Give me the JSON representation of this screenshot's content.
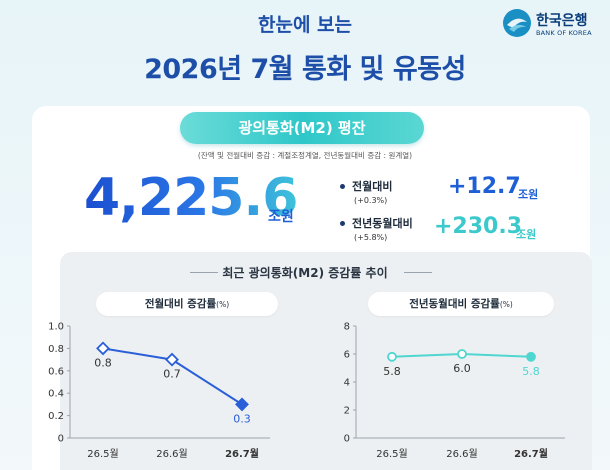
{
  "logo": {
    "name": "한국은행",
    "sub": "BANK OF KOREA"
  },
  "header": {
    "subtitle": "한눈에 보는",
    "title": "2026년 7월 통화 및 유동성"
  },
  "main": {
    "pill": "광의통화(M2) 평잔",
    "note": "(잔액 및 전월대비 증감 : 계절조정계열, 전년동월대비 증감 : 원계열)",
    "value": "4,225.6",
    "unit": "조원",
    "stats": [
      {
        "label": "전월대비",
        "pct": "(+0.3%)",
        "value": "+12.7",
        "unit": "조원",
        "color": "#1f5fd6"
      },
      {
        "label": "전년동월대비",
        "pct": "(+5.8%)",
        "value": "+230.3",
        "unit": "조원",
        "color": "#3cc9cc"
      }
    ]
  },
  "section": {
    "title": "최근 광의통화(M2) 증감률 추이"
  },
  "chart_data": [
    {
      "type": "line",
      "title": "전월대비 증감률",
      "title_unit": "(%)",
      "categories": [
        "26.5월",
        "26.6월",
        "26.7월"
      ],
      "values": [
        0.8,
        0.7,
        0.3
      ],
      "labels": [
        "0.8",
        "0.7",
        "0.3"
      ],
      "ylim": [
        0,
        1.0
      ],
      "yticks": [
        "0",
        "0.2",
        "0.4",
        "0.6",
        "0.8",
        "1.0"
      ],
      "yticks_values": [
        0,
        0.2,
        0.4,
        0.6,
        0.8,
        1.0
      ],
      "color": "#2a5fd8",
      "highlight_last": true
    },
    {
      "type": "line",
      "title": "전년동월대비 증감률",
      "title_unit": "(%)",
      "categories": [
        "26.5월",
        "26.6월",
        "26.7월"
      ],
      "values": [
        5.8,
        6.0,
        5.8
      ],
      "labels": [
        "5.8",
        "6.0",
        "5.8"
      ],
      "ylim": [
        0,
        8
      ],
      "yticks": [
        "0",
        "2",
        "4",
        "6",
        "8"
      ],
      "yticks_values": [
        0,
        2,
        4,
        6,
        8
      ],
      "color": "#4fd6d0",
      "highlight_last": true
    }
  ]
}
